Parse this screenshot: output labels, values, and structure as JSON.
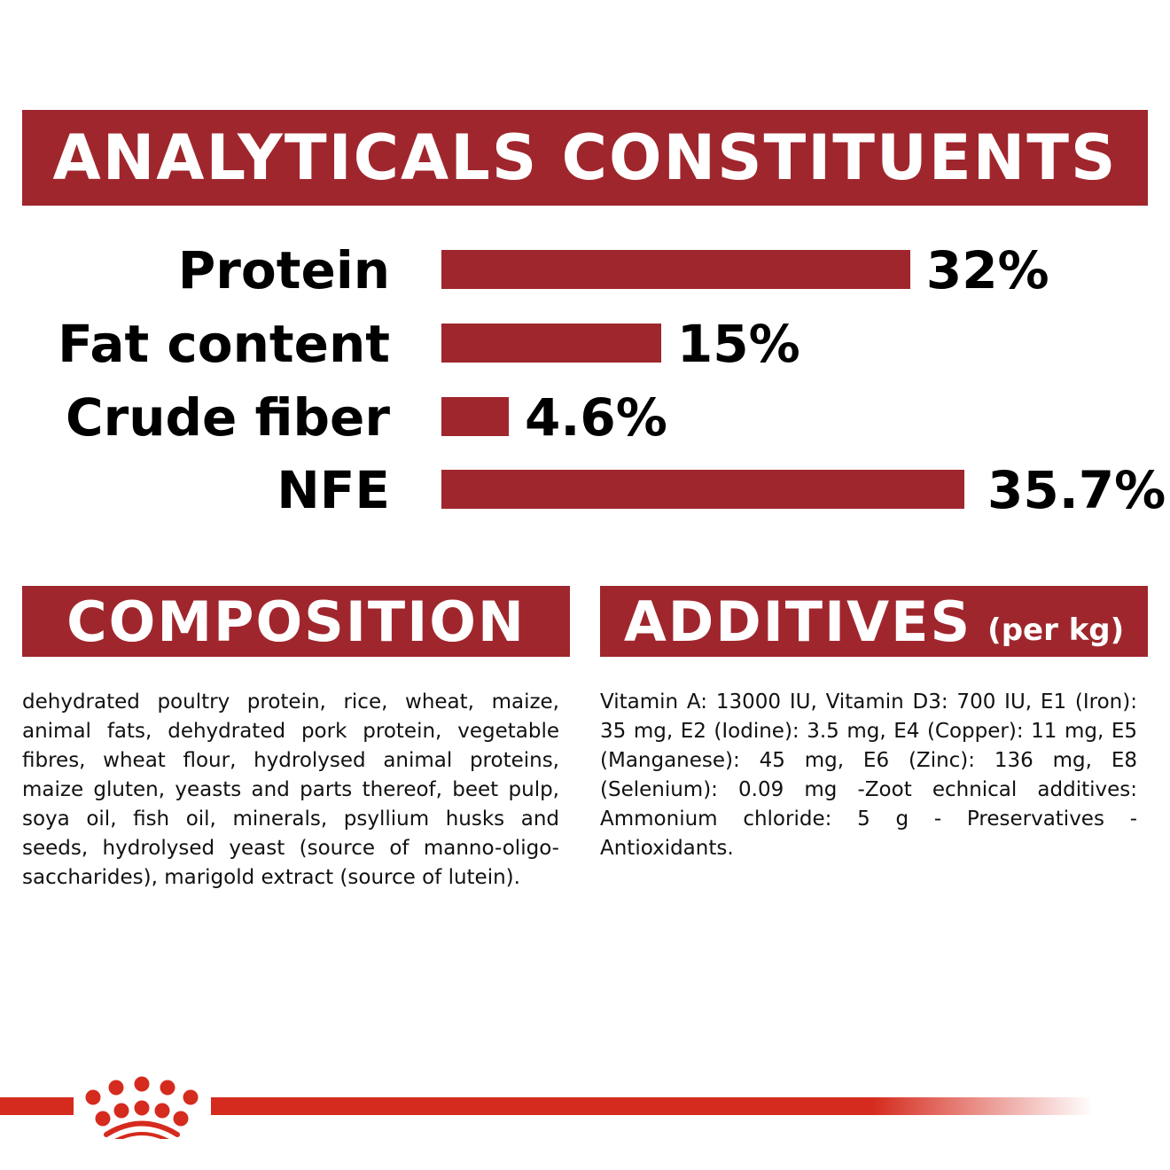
{
  "header": {
    "title": "ANALYTICALS CONSTITUENTS"
  },
  "chart_data": {
    "type": "bar",
    "orientation": "horizontal",
    "categories": [
      "Protein",
      "Fat content",
      "Crude fiber",
      "NFE"
    ],
    "values": [
      32,
      15,
      4.6,
      35.7
    ],
    "data_labels": [
      "32%",
      "15%",
      "4.6%",
      "35.7%"
    ],
    "unit": "%",
    "xlim": [
      0,
      35.7
    ],
    "grid": false,
    "bar_color": "#a0262d"
  },
  "composition": {
    "title": "COMPOSITION",
    "text": "dehydrated poultry protein, rice, wheat, maize, animal fats, dehydrated pork protein, vegetable fibres, wheat flour, hydrolysed animal proteins, maize gluten, yeasts and parts thereof, beet pulp, soya oil, fish oil, minerals, psyllium husks and seeds, hydrolysed yeast (source of manno-oligo-saccharides), marigold extract (source of lutein)."
  },
  "additives": {
    "title": "ADDITIVES",
    "unit": "(per kg)",
    "text": "Vitamin A: 13000 IU, Vitamin D3: 700 IU, E1 (Iron): 35 mg, E2 (Iodine): 3.5 mg, E4 (Copper): 11 mg, E5 (Manganese): 45 mg, E6 (Zinc): 136 mg, E8 (Selenium): 0.09 mg -Zoot echnical additives: Ammonium chloride: 5 g - Preservatives - Antioxidants."
  },
  "colors": {
    "header": "#a0262d",
    "brand": "#d52b1e"
  },
  "logo": {
    "icon": "crown-icon"
  }
}
